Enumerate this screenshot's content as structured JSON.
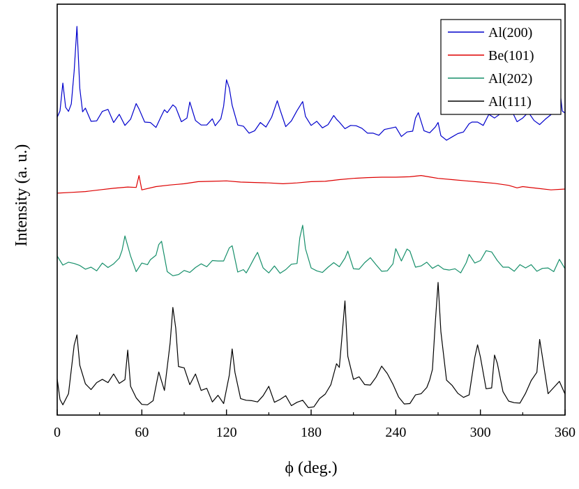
{
  "chart_data": {
    "type": "line",
    "title": "",
    "xlabel": "ϕ (deg.)",
    "ylabel": "Intensity (a. u.)",
    "xlim": [
      0,
      360
    ],
    "ylim": [
      0,
      100
    ],
    "xticks": [
      0,
      60,
      120,
      180,
      240,
      300,
      360
    ],
    "yticks_visible": false,
    "grid": false,
    "legend_position": "top-right",
    "series": [
      {
        "name": "Al(200)",
        "color": "#0000cc",
        "x": [
          0,
          2,
          4,
          6,
          8,
          10,
          12,
          14,
          16,
          18,
          20,
          24,
          28,
          32,
          36,
          40,
          44,
          48,
          52,
          56,
          58,
          62,
          66,
          70,
          74,
          76,
          78,
          82,
          84,
          88,
          92,
          94,
          98,
          102,
          106,
          110,
          112,
          116,
          118,
          120,
          122,
          124,
          128,
          132,
          136,
          140,
          144,
          148,
          152,
          156,
          158,
          162,
          166,
          170,
          174,
          176,
          180,
          184,
          188,
          192,
          196,
          198,
          200,
          204,
          208,
          212,
          216,
          220,
          224,
          228,
          232,
          236,
          240,
          244,
          248,
          252,
          254,
          256,
          260,
          264,
          268,
          270,
          272,
          276,
          280,
          284,
          288,
          292,
          294,
          298,
          302,
          306,
          310,
          314,
          318,
          322,
          326,
          330,
          334,
          338,
          342,
          346,
          350,
          354,
          356,
          358,
          360
        ],
        "y": [
          72.5,
          74.0,
          80.8,
          74.9,
          73.9,
          75.7,
          83.7,
          94.6,
          79.5,
          73.8,
          74.7,
          71.5,
          71.6,
          73.9,
          74.4,
          71.2,
          73.2,
          70.5,
          72.0,
          75.8,
          74.5,
          71.3,
          71.2,
          70.0,
          72.9,
          74.3,
          73.6,
          75.5,
          74.9,
          71.4,
          72.3,
          76.2,
          71.7,
          70.6,
          70.6,
          72.1,
          70.4,
          72.1,
          75.2,
          81.6,
          79.6,
          75.4,
          70.6,
          70.3,
          68.6,
          69.2,
          71.2,
          70.1,
          72.5,
          76.5,
          74.3,
          70.2,
          71.6,
          74.1,
          76.3,
          72.7,
          70.5,
          71.5,
          69.9,
          70.7,
          72.9,
          72.0,
          71.3,
          69.7,
          70.5,
          70.4,
          69.8,
          68.6,
          68.6,
          68.1,
          69.5,
          69.8,
          70.1,
          67.8,
          68.9,
          69.1,
          72.3,
          73.6,
          69.2,
          68.7,
          70.1,
          71.2,
          68.0,
          66.9,
          67.7,
          68.5,
          68.9,
          70.9,
          71.3,
          71.3,
          70.5,
          73.2,
          72.3,
          73.3,
          74.5,
          74.2,
          71.4,
          72.3,
          73.7,
          71.7,
          70.7,
          72.0,
          73.1,
          76.5,
          80.3,
          74.0,
          73.5
        ]
      },
      {
        "name": "Be(101)",
        "color": "#dd0000",
        "x": [
          0,
          10,
          20,
          30,
          40,
          50,
          56,
          58,
          60,
          70,
          80,
          90,
          100,
          110,
          120,
          130,
          140,
          150,
          160,
          170,
          180,
          190,
          200,
          210,
          220,
          230,
          240,
          250,
          258,
          265,
          270,
          280,
          290,
          300,
          310,
          320,
          326,
          330,
          340,
          350,
          360
        ],
        "y": [
          54.0,
          54.2,
          54.4,
          54.8,
          55.2,
          55.5,
          55.4,
          58.3,
          54.8,
          55.6,
          56.0,
          56.3,
          56.8,
          56.9,
          57.0,
          56.7,
          56.6,
          56.5,
          56.3,
          56.5,
          56.8,
          56.9,
          57.3,
          57.6,
          57.8,
          57.9,
          57.9,
          58.0,
          58.3,
          57.9,
          57.6,
          57.3,
          57.0,
          56.7,
          56.4,
          55.9,
          55.3,
          55.6,
          55.2,
          54.8,
          55.0
        ]
      },
      {
        "name": "Al(202)",
        "color": "#168f6a",
        "x": [
          0,
          4,
          8,
          12,
          16,
          20,
          24,
          28,
          32,
          36,
          40,
          44,
          46,
          48,
          52,
          56,
          60,
          64,
          66,
          70,
          72,
          74,
          78,
          82,
          86,
          90,
          94,
          98,
          102,
          106,
          110,
          114,
          118,
          122,
          124,
          128,
          132,
          134,
          136,
          140,
          142,
          146,
          150,
          154,
          158,
          162,
          166,
          170,
          172,
          174,
          176,
          180,
          184,
          188,
          192,
          196,
          200,
          204,
          206,
          210,
          214,
          218,
          222,
          226,
          230,
          234,
          238,
          240,
          244,
          248,
          250,
          254,
          258,
          262,
          266,
          270,
          274,
          278,
          282,
          286,
          290,
          292,
          296,
          300,
          304,
          308,
          312,
          316,
          320,
          324,
          328,
          332,
          336,
          340,
          344,
          348,
          352,
          356,
          360
        ],
        "y": [
          38.7,
          36.5,
          37.2,
          36.9,
          36.4,
          35.5,
          36.0,
          35.1,
          37.0,
          35.9,
          36.8,
          38.2,
          40.1,
          43.6,
          38.7,
          34.9,
          37.0,
          36.6,
          37.8,
          38.9,
          41.5,
          42.3,
          34.9,
          33.9,
          34.2,
          35.2,
          34.7,
          35.9,
          36.8,
          36.1,
          37.6,
          37.5,
          37.5,
          40.7,
          41.2,
          34.8,
          35.4,
          34.6,
          35.8,
          38.4,
          39.6,
          35.8,
          34.6,
          36.3,
          34.5,
          35.4,
          36.7,
          36.9,
          43.2,
          46.2,
          40.5,
          35.8,
          35.1,
          34.7,
          36.0,
          37.1,
          36.1,
          38.2,
          39.9,
          35.6,
          35.5,
          37.1,
          38.3,
          36.6,
          35.0,
          35.1,
          36.8,
          40.5,
          37.5,
          40.4,
          39.9,
          36.0,
          36.3,
          37.2,
          35.7,
          36.5,
          35.5,
          35.3,
          35.6,
          34.6,
          37.1,
          39.1,
          37.0,
          37.6,
          40.0,
          39.7,
          37.6,
          36.0,
          36.0,
          35.0,
          36.6,
          35.8,
          36.6,
          35.0,
          35.7,
          35.8,
          34.9,
          37.9,
          35.6
        ]
      },
      {
        "name": "Al(111)",
        "color": "#000000",
        "x": [
          0,
          2,
          4,
          8,
          12,
          14,
          16,
          20,
          24,
          28,
          32,
          36,
          40,
          44,
          48,
          50,
          52,
          56,
          60,
          64,
          68,
          72,
          76,
          80,
          82,
          84,
          86,
          90,
          94,
          98,
          102,
          106,
          110,
          114,
          118,
          122,
          124,
          126,
          130,
          134,
          138,
          142,
          146,
          150,
          154,
          158,
          162,
          166,
          170,
          174,
          178,
          182,
          186,
          190,
          194,
          198,
          200,
          202,
          204,
          206,
          210,
          214,
          218,
          222,
          226,
          230,
          234,
          238,
          242,
          246,
          250,
          254,
          258,
          262,
          264,
          266,
          268,
          270,
          272,
          276,
          280,
          284,
          288,
          292,
          296,
          298,
          300,
          304,
          308,
          310,
          312,
          316,
          320,
          324,
          328,
          332,
          336,
          340,
          342,
          344,
          348,
          352,
          356,
          360
        ],
        "y": [
          8.8,
          3.8,
          2.5,
          5.2,
          17.0,
          19.5,
          12.1,
          7.6,
          6.2,
          7.9,
          8.7,
          7.9,
          10.0,
          7.7,
          8.6,
          15.8,
          7.0,
          4.2,
          2.6,
          2.5,
          3.5,
          10.5,
          6.0,
          17.4,
          26.2,
          21.2,
          11.8,
          11.5,
          7.4,
          10.0,
          6.0,
          6.5,
          3.2,
          4.8,
          2.8,
          9.7,
          16.1,
          10.4,
          4.0,
          3.6,
          3.5,
          3.2,
          4.7,
          7.0,
          3.1,
          3.8,
          4.7,
          2.3,
          3.1,
          3.6,
          1.8,
          2.0,
          4.0,
          5.1,
          7.4,
          12.5,
          11.6,
          19.6,
          27.8,
          14.3,
          8.7,
          9.3,
          7.4,
          7.3,
          9.2,
          11.9,
          10.1,
          7.5,
          4.4,
          2.7,
          2.8,
          4.9,
          5.2,
          6.7,
          8.5,
          11.1,
          22.5,
          32.3,
          20.3,
          8.5,
          7.2,
          5.3,
          4.3,
          4.9,
          14.0,
          17.1,
          14.1,
          6.4,
          6.6,
          14.6,
          12.6,
          5.7,
          3.4,
          3.0,
          2.9,
          5.3,
          8.4,
          10.4,
          18.4,
          14.1,
          5.2,
          6.7,
          8.2,
          5.1
        ]
      }
    ]
  }
}
